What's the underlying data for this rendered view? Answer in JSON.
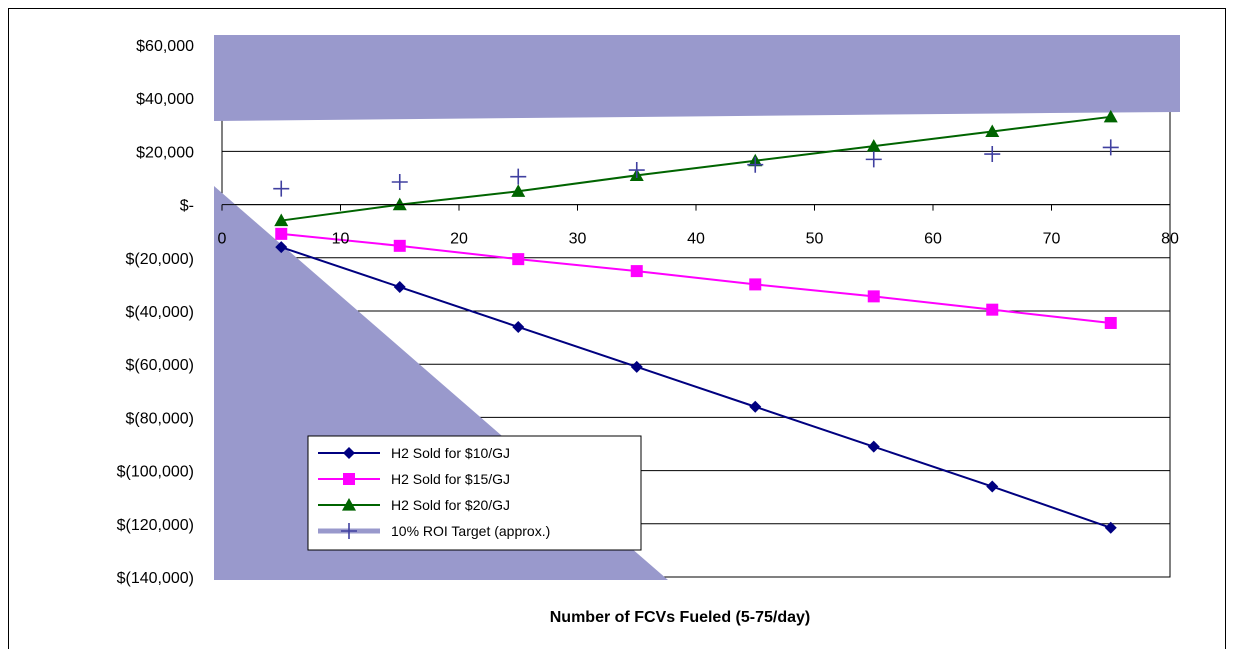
{
  "chart_data": {
    "type": "line",
    "title": "",
    "xlabel": "Number of FCVs Fueled (5-75/day)",
    "ylabel": "",
    "xlim": [
      0,
      80
    ],
    "ylim": [
      -140000,
      60000
    ],
    "x_ticks": [
      0,
      10,
      20,
      30,
      40,
      50,
      60,
      70,
      80
    ],
    "y_ticks": [
      {
        "value": 60000,
        "label": "$60,000"
      },
      {
        "value": 40000,
        "label": "$40,000"
      },
      {
        "value": 20000,
        "label": "$20,000"
      },
      {
        "value": 0,
        "label": "$-"
      },
      {
        "value": -20000,
        "label": "$(20,000)"
      },
      {
        "value": -40000,
        "label": "$(40,000)"
      },
      {
        "value": -60000,
        "label": "$(60,000)"
      },
      {
        "value": -80000,
        "label": "$(80,000)"
      },
      {
        "value": -100000,
        "label": "$(100,000)"
      },
      {
        "value": -120000,
        "label": "$(120,000)"
      },
      {
        "value": -140000,
        "label": "$(140,000)"
      }
    ],
    "x": [
      5,
      15,
      25,
      35,
      45,
      55,
      65,
      75
    ],
    "grid": "horizontal",
    "legend_position": "bottom-left",
    "series": [
      {
        "name": "H2 Sold for $10/GJ",
        "color": "#000080",
        "marker": "diamond",
        "line": true,
        "values": [
          -16000,
          -31000,
          -46000,
          -61000,
          -76000,
          -91000,
          -106000,
          -121500
        ]
      },
      {
        "name": "H2 Sold for $15/GJ",
        "color": "#ff00ff",
        "marker": "square",
        "line": true,
        "values": [
          -11000,
          -15500,
          -20500,
          -25000,
          -30000,
          -34500,
          -39500,
          -44500
        ]
      },
      {
        "name": "H2 Sold for $20/GJ",
        "color": "#006400",
        "marker": "triangle",
        "line": true,
        "values": [
          -6000,
          0,
          5000,
          11000,
          16500,
          22000,
          27500,
          33000
        ]
      },
      {
        "name": "10% ROI Target (approx.)",
        "color": "#4040a0",
        "marker": "plus",
        "line": false,
        "values": [
          6000,
          8500,
          10500,
          13000,
          15000,
          17000,
          19000,
          21500
        ]
      }
    ],
    "colors": {
      "overlay": "#9999cc",
      "axis": "#000000",
      "grid": "#000000"
    }
  }
}
